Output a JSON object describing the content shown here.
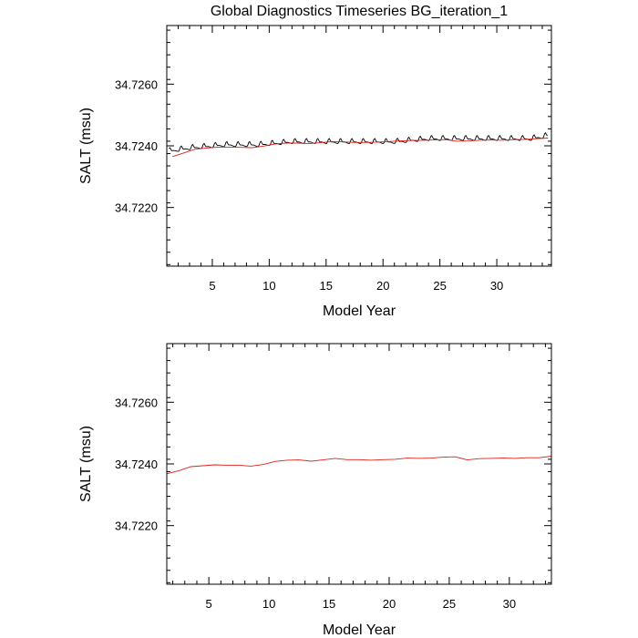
{
  "title": "Global Diagnostics Timeseries BG_iteration_1",
  "chart_data": [
    {
      "type": "line",
      "title": "Global Diagnostics Timeseries BG_iteration_1",
      "xlabel": "Model Year",
      "ylabel": "SALT (msu)",
      "xlim": [
        1.0,
        34.8
      ],
      "ylim": [
        34.7201,
        34.7279
      ],
      "x_ticks": [
        5,
        10,
        15,
        20,
        25,
        30
      ],
      "y_ticks": [
        34.722,
        34.724,
        34.726
      ],
      "y_tick_labels": [
        "34.7220",
        "34.7240",
        "34.7260"
      ],
      "grid": false,
      "series": [
        {
          "color": "#000000",
          "kind": "monthly seasonal cycle",
          "cycle_amplitude": 0.00027,
          "x": [
            1.2,
            3,
            6,
            9,
            12,
            15,
            18,
            21,
            24,
            27,
            30,
            33,
            34.5
          ],
          "y": [
            34.7238,
            34.7239,
            34.724,
            34.724,
            34.7241,
            34.7241,
            34.7241,
            34.7241,
            34.7242,
            34.7242,
            34.7242,
            34.7242,
            34.7243
          ]
        },
        {
          "color": "#e0201b",
          "kind": "annual mean",
          "x": [
            1.5,
            2.5,
            3.5,
            4.5,
            5.5,
            6.5,
            7.5,
            8.5,
            9.5,
            10.5,
            11.5,
            12.5,
            13.5,
            14.5,
            15.5,
            16.5,
            17.5,
            18.5,
            19.5,
            20.5,
            21.5,
            22.5,
            23.5,
            24.5,
            25.5,
            26.5,
            27.5,
            28.5,
            29.5,
            30.5,
            31.5,
            32.5,
            33.5,
            34.5
          ],
          "y": [
            34.72365,
            34.72377,
            34.72389,
            34.72393,
            34.72396,
            34.72396,
            34.72395,
            34.72394,
            34.72399,
            34.72406,
            34.72409,
            34.72409,
            34.72407,
            34.7241,
            34.72414,
            34.72413,
            34.72411,
            34.72411,
            34.72412,
            34.72414,
            34.72416,
            34.72417,
            34.72418,
            34.72419,
            34.7242,
            34.72415,
            34.72416,
            34.72418,
            34.72419,
            34.72418,
            34.7242,
            34.72421,
            34.72423,
            34.72425
          ]
        }
      ]
    },
    {
      "type": "line",
      "title": "",
      "xlabel": "Model Year",
      "ylabel": "SALT (msu)",
      "xlim": [
        1.5,
        33.5
      ],
      "ylim": [
        34.7201,
        34.7279
      ],
      "x_ticks": [
        5,
        10,
        15,
        20,
        25,
        30
      ],
      "y_ticks": [
        34.722,
        34.724,
        34.726
      ],
      "y_tick_labels": [
        "34.7220",
        "34.7240",
        "34.7260"
      ],
      "grid": false,
      "series": [
        {
          "color": "#e0201b",
          "kind": "annual mean",
          "x": [
            1.5,
            2.5,
            3.5,
            4.5,
            5.5,
            6.5,
            7.5,
            8.5,
            9.5,
            10.5,
            11.5,
            12.5,
            13.5,
            14.5,
            15.5,
            16.5,
            17.5,
            18.5,
            19.5,
            20.5,
            21.5,
            22.5,
            23.5,
            24.5,
            25.5,
            26.5,
            27.5,
            28.5,
            29.5,
            30.5,
            31.5,
            32.5,
            33.5
          ],
          "y": [
            34.72368,
            34.72378,
            34.72391,
            34.72394,
            34.72397,
            34.72396,
            34.72396,
            34.72393,
            34.72398,
            34.72408,
            34.72412,
            34.72413,
            34.72409,
            34.72413,
            34.72418,
            34.72414,
            34.72414,
            34.72412,
            34.72414,
            34.72415,
            34.72419,
            34.72418,
            34.72419,
            34.72422,
            34.72423,
            34.72413,
            34.72417,
            34.72418,
            34.72419,
            34.72418,
            34.7242,
            34.7242,
            34.72425
          ]
        }
      ]
    }
  ]
}
